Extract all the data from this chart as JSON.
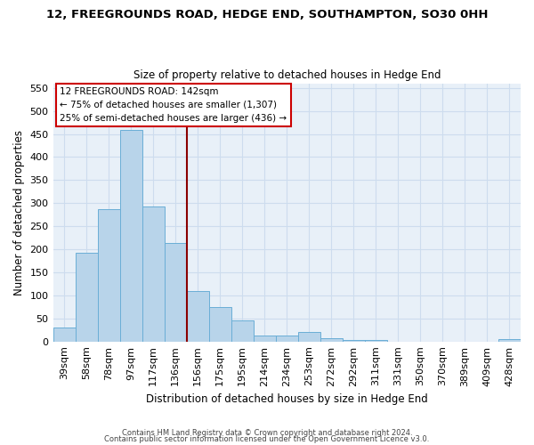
{
  "title": "12, FREEGROUNDS ROAD, HEDGE END, SOUTHAMPTON, SO30 0HH",
  "subtitle": "Size of property relative to detached houses in Hedge End",
  "xlabel": "Distribution of detached houses by size in Hedge End",
  "ylabel": "Number of detached properties",
  "bar_labels": [
    "39sqm",
    "58sqm",
    "78sqm",
    "97sqm",
    "117sqm",
    "136sqm",
    "156sqm",
    "175sqm",
    "195sqm",
    "214sqm",
    "234sqm",
    "253sqm",
    "272sqm",
    "292sqm",
    "311sqm",
    "331sqm",
    "350sqm",
    "370sqm",
    "389sqm",
    "409sqm",
    "428sqm"
  ],
  "bar_values": [
    30,
    192,
    287,
    458,
    292,
    213,
    110,
    74,
    46,
    12,
    12,
    20,
    7,
    4,
    3,
    0,
    0,
    0,
    0,
    0,
    5
  ],
  "bar_color": "#b8d4ea",
  "bar_edge_color": "#6aaed6",
  "vline_color": "#8b0000",
  "ylim": [
    0,
    560
  ],
  "yticks": [
    0,
    50,
    100,
    150,
    200,
    250,
    300,
    350,
    400,
    450,
    500,
    550
  ],
  "annotation_text": "12 FREEGROUNDS ROAD: 142sqm\n← 75% of detached houses are smaller (1,307)\n25% of semi-detached houses are larger (436) →",
  "annotation_box_color": "#ffffff",
  "annotation_box_edge": "#cc0000",
  "footer_line1": "Contains HM Land Registry data © Crown copyright and database right 2024.",
  "footer_line2": "Contains public sector information licensed under the Open Government Licence v3.0.",
  "grid_color": "#cddcee",
  "background_color": "#e8f0f8"
}
